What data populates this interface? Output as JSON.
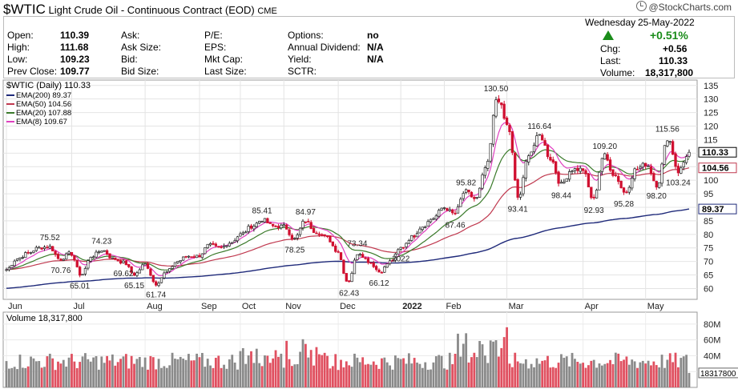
{
  "header": {
    "symbol": "$WTIC",
    "description": "Light Crude Oil - Continuous Contract (EOD)",
    "exchange": "CME",
    "credit": "@StockCharts.com"
  },
  "quote": {
    "open_label": "Open:",
    "open": "110.39",
    "high_label": "High:",
    "high": "111.68",
    "low_label": "Low:",
    "low": "109.23",
    "prev_label": "Prev Close:",
    "prev": "109.77",
    "ask_label": "Ask:",
    "ask": "",
    "asksize_label": "Ask Size:",
    "asksize": "",
    "bid_label": "Bid:",
    "bid": "",
    "bidsize_label": "Bid Size:",
    "bidsize": "",
    "pe_label": "P/E:",
    "eps_label": "EPS:",
    "mktcap_label": "Mkt Cap:",
    "lastsize_label": "Last Size:",
    "options_label": "Options:",
    "options": "no",
    "div_label": "Annual Dividend:",
    "div": "N/A",
    "yield_label": "Yield:",
    "yield": "N/A",
    "sctr_label": "SCTR:",
    "day": "Wednesday",
    "date": "25-May-2022",
    "pct": "+0.51%",
    "chg_label": "Chg:",
    "chg": "+0.56",
    "last_label": "Last:",
    "last": "110.33",
    "volume_label": "Volume:",
    "volume": "18,317,800",
    "up_color": "#1a8c1a"
  },
  "chart_data": {
    "type": "candlestick",
    "title": "$WTIC (Daily) 110.33",
    "y_ticks": [
      60,
      65,
      70,
      75,
      80,
      85,
      90,
      95,
      100,
      105,
      110,
      115,
      120,
      125,
      130,
      135
    ],
    "ylim": [
      56,
      137
    ],
    "x_labels": [
      "Jun",
      "Jul",
      "Aug",
      "Sep",
      "Oct",
      "Nov",
      "Dec",
      "2022",
      "Feb",
      "Mar",
      "Apr",
      "May"
    ],
    "legend": [
      {
        "name": "EMA(200)",
        "value": "89.37",
        "color": "#1f2a7a"
      },
      {
        "name": "EMA(50)",
        "value": "104.56",
        "color": "#c0394f"
      },
      {
        "name": "EMA(20)",
        "value": "107.88",
        "color": "#3a7a2a"
      },
      {
        "name": "EMA(8)",
        "value": "109.67",
        "color": "#e040c0"
      }
    ],
    "price_anchors": [
      [
        "Jun",
        67
      ],
      [
        "",
        71
      ],
      [
        "",
        73
      ],
      [
        "",
        75
      ],
      [
        "75.52",
        75.5
      ],
      [
        "70.76",
        70.8
      ],
      [
        "Jul",
        73
      ],
      [
        "65.01",
        65
      ],
      [
        "",
        72
      ],
      [
        "74.23",
        74.2
      ],
      [
        "",
        71
      ],
      [
        "69.62",
        69.6
      ],
      [
        "65.15",
        65.2
      ],
      [
        "Aug",
        69
      ],
      [
        "61.74",
        61.7
      ],
      [
        "",
        66
      ],
      [
        "",
        70
      ],
      [
        "",
        72
      ],
      [
        "Sep",
        72
      ],
      [
        "",
        76
      ],
      [
        "",
        75
      ],
      [
        "",
        77
      ],
      [
        "Oct",
        80
      ],
      [
        "",
        83
      ],
      [
        "85.41",
        85.4
      ],
      [
        "",
        83
      ],
      [
        "Nov",
        83
      ],
      [
        "78.25",
        78.3
      ],
      [
        "84.97",
        85
      ],
      [
        "",
        81
      ],
      [
        "",
        79
      ],
      [
        "Dec",
        74
      ],
      [
        "62.43",
        62.4
      ],
      [
        "73.34",
        73.3
      ],
      [
        "",
        70
      ],
      [
        "66.12",
        66.1
      ],
      [
        "",
        70
      ],
      [
        "2022",
        75
      ],
      [
        "",
        79
      ],
      [
        "",
        83
      ],
      [
        "",
        86
      ],
      [
        "Feb",
        90
      ],
      [
        "87.46",
        87.5
      ],
      [
        "95.82",
        95.8
      ],
      [
        "",
        93
      ],
      [
        "",
        105
      ],
      [
        "130.50",
        130.5
      ],
      [
        "Mar",
        120
      ],
      [
        "93.41",
        93.4
      ],
      [
        "",
        110
      ],
      [
        "116.64",
        116.6
      ],
      [
        "",
        108
      ],
      [
        "98.44",
        98.4
      ],
      [
        "",
        104
      ],
      [
        "Apr",
        104
      ],
      [
        "92.93",
        92.9
      ],
      [
        "109.20",
        109.2
      ],
      [
        "",
        102
      ],
      [
        "95.28",
        95.3
      ],
      [
        "",
        104
      ],
      [
        "May",
        106
      ],
      [
        "98.20",
        98.2
      ],
      [
        "115.56",
        115.6
      ],
      [
        "103.24",
        103.2
      ],
      [
        "",
        110.33
      ]
    ],
    "ema_legend_end": {
      "EMA(200)": 89.37,
      "EMA(50)": 104.56,
      "EMA(20)": 107.88,
      "EMA(8)": 109.67
    },
    "volume": {
      "label": "Volume 18,317,800",
      "y_ticks": [
        "80M",
        "60M",
        "40M",
        "20M"
      ],
      "y_values": [
        80,
        60,
        40,
        20
      ],
      "ylim": [
        0,
        95
      ],
      "last_label": "18317800",
      "last_value": 18.3
    },
    "right_labels": {
      "last": "110.33",
      "ema50": "104.56",
      "ema200": "89.37"
    }
  }
}
